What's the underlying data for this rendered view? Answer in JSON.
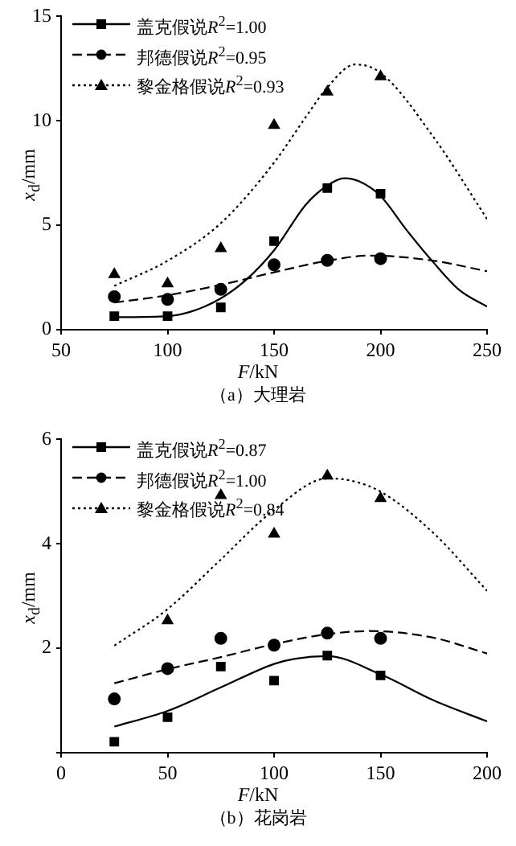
{
  "chart_data": [
    {
      "type": "scatter",
      "title": "（a）大理岩",
      "xlabel": "F/kN",
      "ylabel": "x$_{d}$/mm",
      "xlim": [
        50,
        250
      ],
      "xticks": [
        50,
        100,
        150,
        200,
        250
      ],
      "ylim": [
        0,
        15
      ],
      "yticks": [
        0,
        5,
        10,
        15
      ],
      "grid": false,
      "legend": "top left",
      "series": [
        {
          "name": "盖克假说R$^{2}$=1.00",
          "color": "#000000",
          "marker": "square",
          "line_style": "solid",
          "x": [
            75,
            100,
            125,
            150,
            175,
            200
          ],
          "values": [
            0.65,
            0.65,
            1.07,
            4.24,
            6.78,
            6.51
          ]
        },
        {
          "name": "邦德假说R$^{2}$=0.95",
          "color": "#000000",
          "marker": "circle",
          "line_style": "dashed",
          "x": [
            75,
            100,
            125,
            150,
            175,
            200
          ],
          "values": [
            1.58,
            1.45,
            1.93,
            3.11,
            3.32,
            3.4
          ]
        },
        {
          "name": "黎金格假说R$^{2}$=0.93",
          "color": "#000000",
          "marker": "triangle",
          "line_style": "dotted",
          "x": [
            75,
            100,
            125,
            150,
            175,
            200
          ],
          "values": [
            2.65,
            2.2,
            3.89,
            9.79,
            11.39,
            12.12
          ]
        },
        {
          "type": "line",
          "color": "#000000",
          "line_style": "solid",
          "x": [
            75,
            100,
            112,
            125,
            137,
            150,
            165,
            175,
            183,
            190,
            200,
            212,
            225,
            237,
            250
          ],
          "values": [
            0.6,
            0.65,
            0.9,
            1.5,
            2.4,
            3.8,
            6.0,
            6.9,
            7.25,
            7.1,
            6.4,
            4.8,
            3.2,
            1.9,
            1.1
          ]
        },
        {
          "type": "line",
          "color": "#000000",
          "line_style": "dashed",
          "x": [
            75,
            100,
            125,
            150,
            175,
            195,
            225,
            250
          ],
          "values": [
            1.3,
            1.65,
            2.15,
            2.75,
            3.3,
            3.55,
            3.3,
            2.8
          ]
        },
        {
          "type": "line",
          "color": "#000000",
          "line_style": "dotted",
          "x": [
            75,
            100,
            125,
            150,
            165,
            175,
            188,
            200,
            225,
            250
          ],
          "values": [
            2.1,
            3.3,
            5.1,
            8.0,
            10.2,
            11.6,
            12.7,
            12.3,
            9.2,
            5.3
          ]
        }
      ]
    },
    {
      "type": "scatter",
      "title": "（b）花岗岩",
      "xlabel": "F/kN",
      "ylabel": "x$_{d}$/mm",
      "xlim": [
        0,
        200
      ],
      "xticks": [
        0,
        50,
        100,
        150,
        200
      ],
      "ylim": [
        0,
        6
      ],
      "yticks": [
        {
          "value": 0,
          "label": null
        },
        2,
        4,
        6
      ],
      "grid": false,
      "legend": "top left",
      "series": [
        {
          "name": "盖克假说R$^{2}$=0.87",
          "color": "#000000",
          "marker": "square",
          "line_style": "solid",
          "x": [
            25,
            50,
            75,
            100,
            125,
            150
          ],
          "values": [
            0.21,
            0.68,
            1.65,
            1.38,
            1.86,
            1.48
          ]
        },
        {
          "name": "邦德假说R$^{2}$=1.00",
          "color": "#000000",
          "marker": "circle",
          "line_style": "dashed",
          "x": [
            25,
            50,
            75,
            100,
            125,
            150
          ],
          "values": [
            1.03,
            1.61,
            2.19,
            2.06,
            2.29,
            2.19
          ]
        },
        {
          "name": "黎金格假说R$^{2}$=0.84",
          "color": "#000000",
          "marker": "triangle",
          "line_style": "dotted",
          "x": [
            50,
            75,
            100,
            125,
            150
          ],
          "values": [
            2.53,
            4.93,
            4.19,
            5.3,
            4.87
          ]
        },
        {
          "type": "line",
          "color": "#000000",
          "line_style": "solid",
          "x": [
            25,
            50,
            75,
            100,
            110,
            125,
            150,
            175,
            200
          ],
          "values": [
            0.5,
            0.8,
            1.25,
            1.7,
            1.8,
            1.85,
            1.5,
            1.0,
            0.6
          ]
        },
        {
          "type": "line",
          "color": "#000000",
          "line_style": "dashed",
          "x": [
            25,
            50,
            75,
            100,
            125,
            145,
            175,
            200
          ],
          "values": [
            1.33,
            1.6,
            1.83,
            2.08,
            2.27,
            2.33,
            2.2,
            1.9
          ]
        },
        {
          "type": "line",
          "color": "#000000",
          "line_style": "dotted",
          "x": [
            25,
            50,
            75,
            100,
            125,
            135,
            150,
            175,
            200
          ],
          "values": [
            2.05,
            2.75,
            3.7,
            4.65,
            5.25,
            5.22,
            5.0,
            4.2,
            3.1
          ]
        }
      ]
    }
  ]
}
